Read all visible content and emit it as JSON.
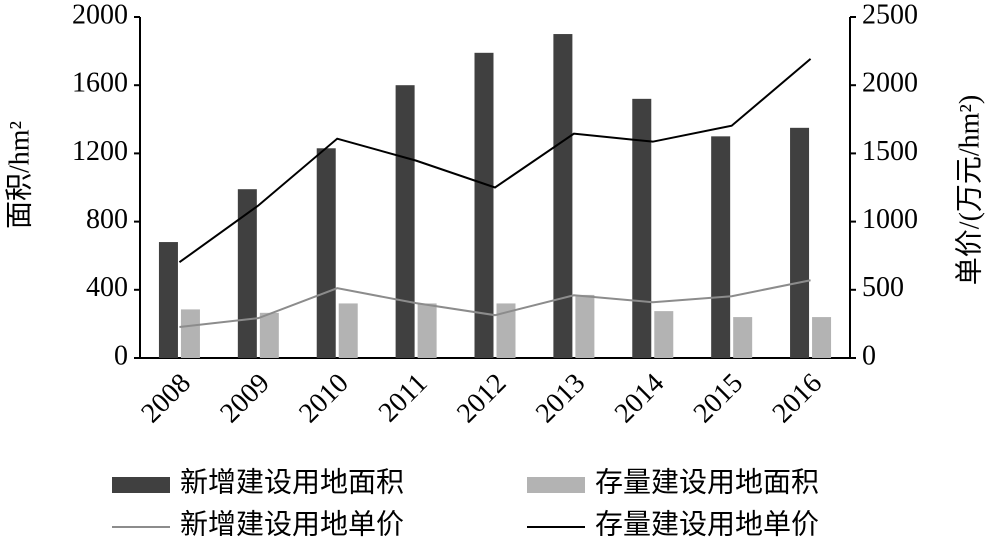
{
  "chart_data": {
    "type": "bar",
    "categories": [
      "2008",
      "2009",
      "2010",
      "2011",
      "2012",
      "2013",
      "2014",
      "2015",
      "2016"
    ],
    "ylabel": "面积/hm²",
    "y2label": "单价/(万元/hm²)",
    "ylim": [
      0,
      2000
    ],
    "yticks": [
      0,
      400,
      800,
      1200,
      1600,
      2000
    ],
    "y2lim": [
      0,
      2500
    ],
    "y2ticks": [
      0,
      500,
      1000,
      1500,
      2000,
      2500
    ],
    "series": [
      {
        "name": "新增建设用地面积",
        "type": "bar",
        "color": "#404040",
        "values": [
          680,
          990,
          1230,
          1600,
          1790,
          1900,
          1520,
          1300,
          1350
        ]
      },
      {
        "name": "存量建设用地面积",
        "type": "bar",
        "color": "#b3b3b3",
        "values": [
          285,
          265,
          320,
          320,
          320,
          370,
          275,
          240,
          240
        ]
      },
      {
        "name": "新增建设用地单价",
        "type": "line",
        "axis": "y2",
        "color": "#8c8c8c",
        "values": [
          227,
          292,
          512,
          402,
          314,
          460,
          409,
          453,
          570
        ]
      },
      {
        "name": "存量建设用地单价",
        "type": "line",
        "axis": "y2",
        "color": "#000000",
        "values": [
          702,
          1118,
          1608,
          1447,
          1250,
          1645,
          1586,
          1703,
          2193
        ]
      }
    ]
  }
}
